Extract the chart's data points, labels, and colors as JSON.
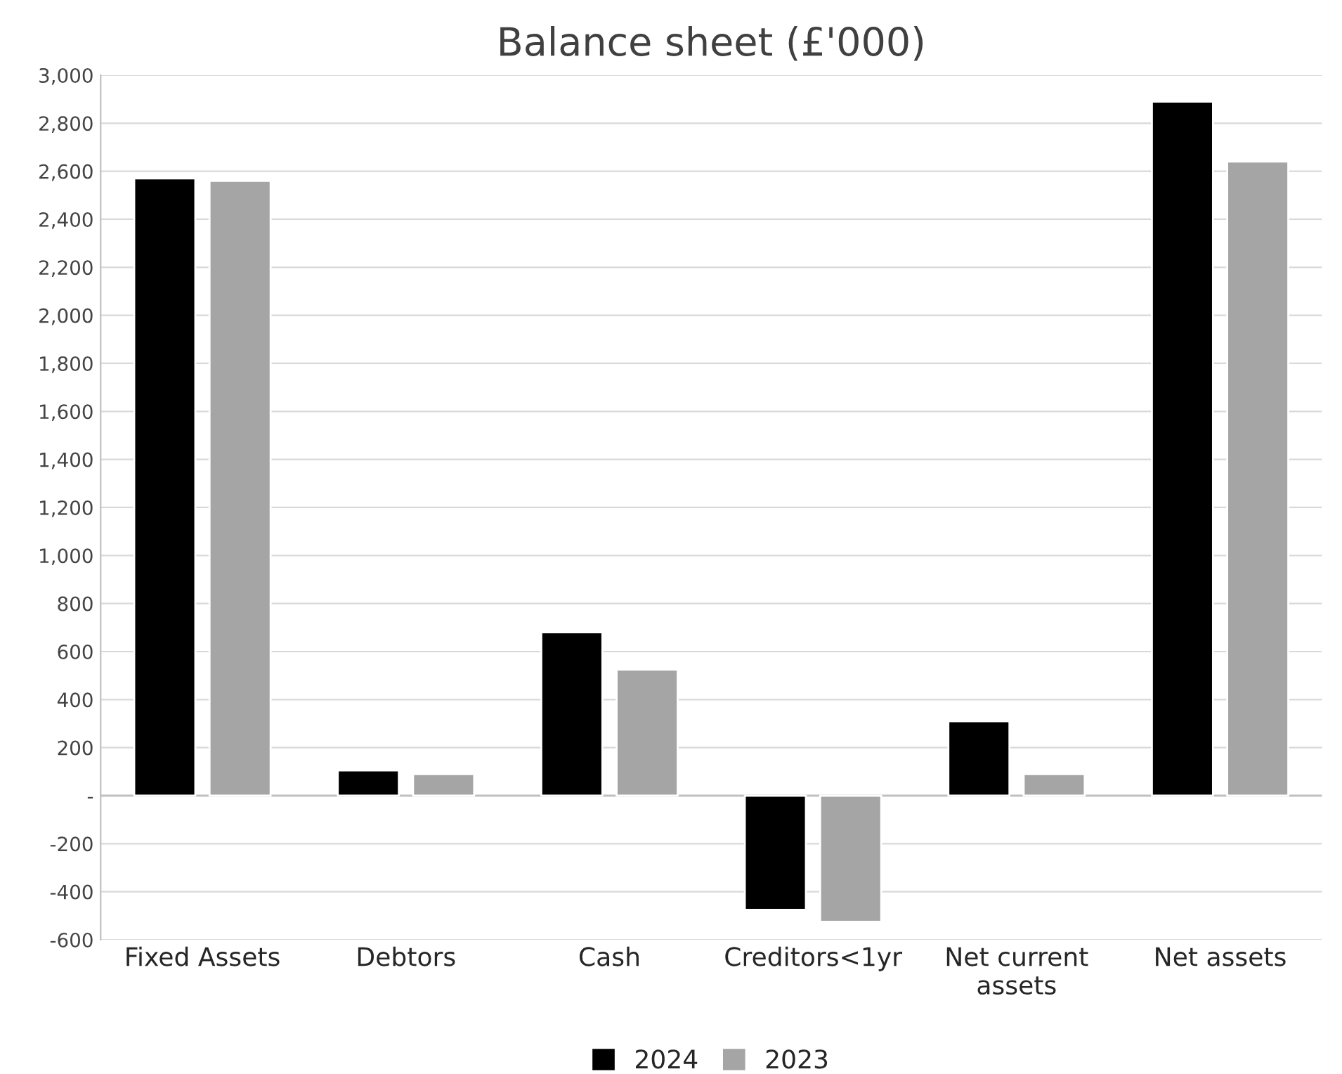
{
  "chart_data": {
    "type": "bar",
    "title": "Balance sheet (£'000)",
    "categories": [
      "Fixed Assets",
      "Debtors",
      "Cash",
      "Creditors<1yr",
      "Net current\nassets",
      "Net assets"
    ],
    "series": [
      {
        "name": "2024",
        "color": "#000000",
        "values": [
          2570,
          105,
          680,
          -475,
          310,
          2890
        ]
      },
      {
        "name": "2023",
        "color": "#a5a5a5",
        "values": [
          2560,
          90,
          525,
          -525,
          90,
          2640
        ]
      }
    ],
    "ylim": [
      -600,
      3000
    ],
    "yticks": [
      {
        "value": -600,
        "label": "-600"
      },
      {
        "value": -400,
        "label": "-400"
      },
      {
        "value": -200,
        "label": "-200"
      },
      {
        "value": 0,
        "label": "-"
      },
      {
        "value": 200,
        "label": "200"
      },
      {
        "value": 400,
        "label": "400"
      },
      {
        "value": 600,
        "label": "600"
      },
      {
        "value": 800,
        "label": "800"
      },
      {
        "value": 1000,
        "label": "1,000"
      },
      {
        "value": 1200,
        "label": "1,200"
      },
      {
        "value": 1400,
        "label": "1,400"
      },
      {
        "value": 1600,
        "label": "1,600"
      },
      {
        "value": 1800,
        "label": "1,800"
      },
      {
        "value": 2000,
        "label": "2,000"
      },
      {
        "value": 2200,
        "label": "2,200"
      },
      {
        "value": 2400,
        "label": "2,400"
      },
      {
        "value": 2600,
        "label": "2,600"
      },
      {
        "value": 2800,
        "label": "2,800"
      },
      {
        "value": 3000,
        "label": "3,000"
      }
    ],
    "grid": "y",
    "legend": "bottom"
  }
}
